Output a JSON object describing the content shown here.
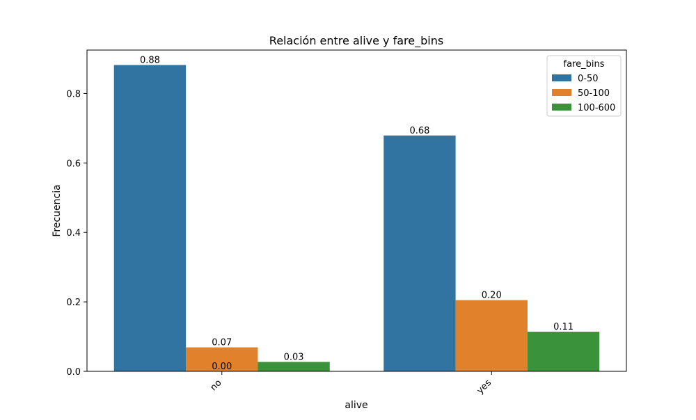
{
  "chart_data": {
    "type": "bar",
    "title": "Relación entre alive y fare_bins",
    "xlabel": "alive",
    "ylabel": "Frecuencia",
    "categories": [
      "no",
      "yes"
    ],
    "ylim": [
      0,
      0.925
    ],
    "yticks": [
      0.0,
      0.2,
      0.4,
      0.6,
      0.8
    ],
    "ytick_labels": [
      "0.0",
      "0.2",
      "0.4",
      "0.6",
      "0.8"
    ],
    "grid": false,
    "legend": {
      "title": "fare_bins",
      "placement": "top-right"
    },
    "series": [
      {
        "name": "0-50",
        "color": "#3274a1",
        "values": [
          0.882,
          0.679
        ],
        "labels": [
          "0.88",
          "0.68"
        ]
      },
      {
        "name": "50-100",
        "color": "#e1812c",
        "values": [
          0.069,
          0.205
        ],
        "labels": [
          "0.07",
          "0.20"
        ]
      },
      {
        "name": "100-600",
        "color": "#3a923a",
        "values": [
          0.027,
          0.114
        ],
        "labels": [
          "0.03",
          "0.11"
        ]
      }
    ],
    "extra_annotations": [
      {
        "text": "0.00",
        "category": "no",
        "series": "50-100",
        "value": 0.0
      }
    ]
  }
}
